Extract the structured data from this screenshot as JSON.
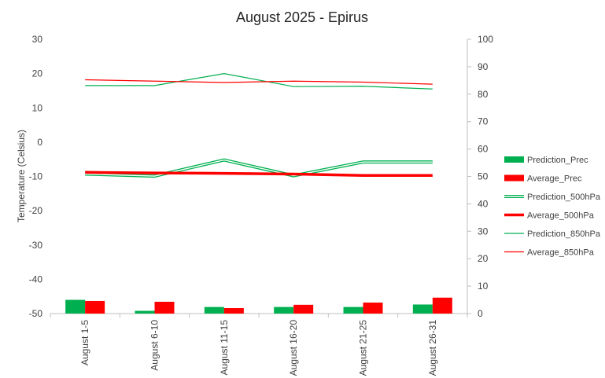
{
  "chart_data": {
    "type": "bar",
    "title": "August 2025 - Epirus",
    "ylabel": "Temperature  (Celsius)",
    "ylabel_right": "",
    "categories": [
      "August 1-5",
      "August 6-10",
      "August 11-15",
      "August 16-20",
      "August 21-25",
      "August 26-31"
    ],
    "ylim": [
      -50,
      30
    ],
    "yticks": [
      30,
      20,
      10,
      0,
      -10,
      -20,
      -30,
      -40,
      -50
    ],
    "ylim_right": [
      0,
      100
    ],
    "yticks_right": [
      100,
      90,
      80,
      70,
      60,
      50,
      40,
      30,
      20,
      10,
      0
    ],
    "grid": false,
    "legend_position": "right",
    "bar_series": [
      {
        "name": "Prediction_Prec",
        "axis": "right",
        "color": "#00b050",
        "values": [
          5.0,
          1.0,
          2.4,
          2.4,
          2.4,
          3.3
        ]
      },
      {
        "name": "Average_Prec",
        "axis": "right",
        "color": "#ff0000",
        "values": [
          4.6,
          4.3,
          2.0,
          3.2,
          4.0,
          5.8
        ]
      }
    ],
    "line_series": [
      {
        "name": "Prediction_500hPa",
        "axis": "left",
        "color": "#00b050",
        "style": "double",
        "values": [
          -9.3,
          -9.9,
          -5.2,
          -9.8,
          -5.8,
          -5.8
        ]
      },
      {
        "name": "Average_500hPa",
        "axis": "left",
        "color": "#ff0000",
        "style": "thick",
        "values": [
          -8.8,
          -9.0,
          -9.1,
          -9.3,
          -9.7,
          -9.7
        ]
      },
      {
        "name": "Prediction_850hPa",
        "axis": "left",
        "color": "#00b050",
        "style": "thin",
        "values": [
          16.5,
          16.5,
          20.0,
          16.2,
          16.3,
          15.5
        ]
      },
      {
        "name": "Average_850hPa",
        "axis": "left",
        "color": "#ff0000",
        "style": "thin",
        "values": [
          18.2,
          17.8,
          17.4,
          17.8,
          17.5,
          16.9
        ]
      }
    ]
  }
}
